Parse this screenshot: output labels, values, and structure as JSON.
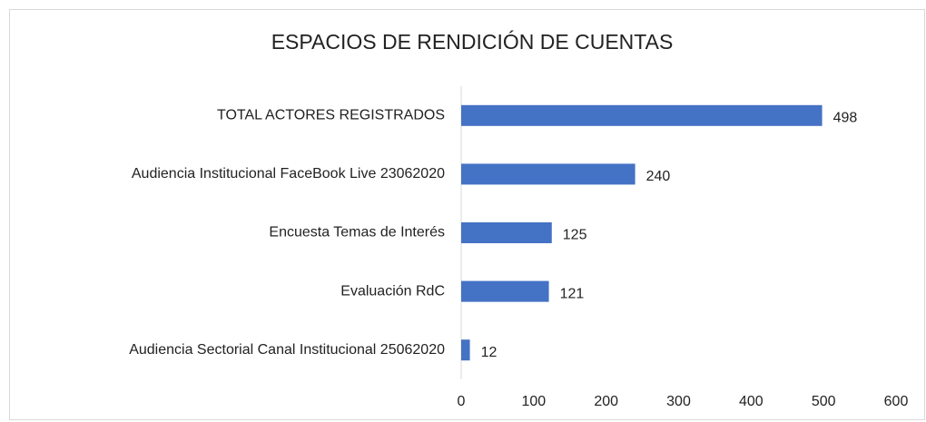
{
  "chart_data": {
    "type": "bar",
    "orientation": "horizontal",
    "title": "ESPACIOS DE RENDICIÓN DE CUENTAS",
    "categories": [
      "TOTAL ACTORES REGISTRADOS",
      "Audiencia Institucional FaceBook Live 23062020",
      "Encuesta Temas de Interés",
      "Evaluación RdC",
      "Audiencia Sectorial Canal Institucional 25062020"
    ],
    "values": [
      498,
      240,
      125,
      121,
      12
    ],
    "color": "#4472c4",
    "xlim": [
      0,
      600
    ],
    "xticks": [
      0,
      100,
      200,
      300,
      400,
      500,
      600
    ],
    "grid": false
  }
}
